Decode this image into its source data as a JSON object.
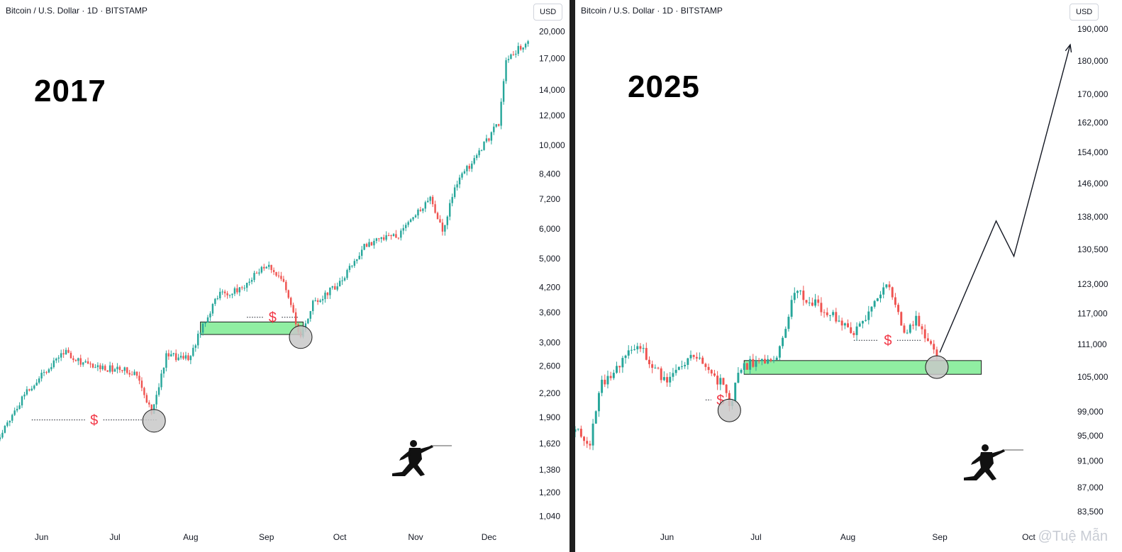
{
  "panels": [
    {
      "symbol": "Bitcoin / U.S. Dollar · 1D · BITSTAMP",
      "currency": "USD",
      "year": "2017",
      "liquidity_marker": "$",
      "price_ticks": [
        "20,000",
        "17,000",
        "14,000",
        "12,000",
        "10,000",
        "8,400",
        "7,200",
        "6,000",
        "5,000",
        "4,200",
        "3,600",
        "3,000",
        "2,600",
        "2,200",
        "1,900",
        "1,620",
        "1,380",
        "1,200",
        "1,040"
      ],
      "time_ticks": [
        "Jun",
        "Jul",
        "Aug",
        "Sep",
        "Oct",
        "Nov",
        "Dec"
      ]
    },
    {
      "symbol": "Bitcoin / U.S. Dollar · 1D · BITSTAMP",
      "currency": "USD",
      "year": "2025",
      "liquidity_marker": "$",
      "price_ticks": [
        "190,000",
        "180,000",
        "170,000",
        "162,000",
        "154,000",
        "146,000",
        "138,000",
        "130,500",
        "123,000",
        "117,000",
        "111,000",
        "105,000",
        "99,000",
        "95,000",
        "91,000",
        "87,000",
        "83,500"
      ],
      "time_ticks": [
        "Jun",
        "Jul",
        "Aug",
        "Sep",
        "Oct"
      ]
    }
  ],
  "watermark": "@Tuệ Mẫn",
  "colors": {
    "up": "#26a69a",
    "down": "#ef5350",
    "zone": "#90eea2",
    "circle": "#c8c8c8",
    "text": "#131722",
    "dollar": "#f23645"
  },
  "chart_data": [
    {
      "type": "candlestick",
      "title": "2017",
      "y_scale": "log",
      "ylim": [
        980,
        21500
      ],
      "x_range": [
        "2017-05-15",
        "2017-12-18"
      ],
      "close_path": [
        [
          "2017-05-15",
          1700
        ],
        [
          "2017-05-25",
          2200
        ],
        [
          "2017-06-10",
          2850
        ],
        [
          "2017-06-20",
          2600
        ],
        [
          "2017-07-01",
          2550
        ],
        [
          "2017-07-10",
          2500
        ],
        [
          "2017-07-16",
          1950
        ],
        [
          "2017-07-22",
          2750
        ],
        [
          "2017-08-01",
          2750
        ],
        [
          "2017-08-05",
          3250
        ],
        [
          "2017-08-12",
          4000
        ],
        [
          "2017-08-20",
          4100
        ],
        [
          "2017-09-01",
          4800
        ],
        [
          "2017-09-08",
          4300
        ],
        [
          "2017-09-15",
          3100
        ],
        [
          "2017-09-20",
          3800
        ],
        [
          "2017-10-01",
          4300
        ],
        [
          "2017-10-12",
          5500
        ],
        [
          "2017-10-25",
          5800
        ],
        [
          "2017-11-07",
          7300
        ],
        [
          "2017-11-12",
          5900
        ],
        [
          "2017-11-17",
          7800
        ],
        [
          "2017-11-28",
          9800
        ],
        [
          "2017-12-05",
          11500
        ],
        [
          "2017-12-08",
          16500
        ],
        [
          "2017-12-17",
          19200
        ]
      ],
      "support_zone": {
        "from": "2017-08-05",
        "to": "2017-09-16",
        "low": 3150,
        "high": 3400
      },
      "liquidity_levels": [
        {
          "from": "2017-05-28",
          "to": "2017-07-18",
          "price": 1870
        },
        {
          "from": "2017-08-24",
          "to": "2017-09-14",
          "price": 3500
        }
      ],
      "circles": [
        {
          "date": "2017-07-17",
          "price": 1860
        },
        {
          "date": "2017-09-15",
          "price": 3100
        }
      ]
    },
    {
      "type": "candlestick",
      "title": "2025",
      "y_scale": "log",
      "ylim": [
        81500,
        193000
      ],
      "x_range": [
        "2025-05-01",
        "2025-10-15"
      ],
      "close_path": [
        [
          "2025-05-01",
          96500
        ],
        [
          "2025-05-06",
          94000
        ],
        [
          "2025-05-10",
          104000
        ],
        [
          "2025-05-22",
          111000
        ],
        [
          "2025-06-01",
          104000
        ],
        [
          "2025-06-10",
          109000
        ],
        [
          "2025-06-20",
          103500
        ],
        [
          "2025-06-22",
          100000
        ],
        [
          "2025-06-26",
          107000
        ],
        [
          "2025-07-08",
          108500
        ],
        [
          "2025-07-14",
          121500
        ],
        [
          "2025-07-25",
          117500
        ],
        [
          "2025-08-03",
          113500
        ],
        [
          "2025-08-10",
          118500
        ],
        [
          "2025-08-14",
          123500
        ],
        [
          "2025-08-20",
          113500
        ],
        [
          "2025-08-24",
          116000
        ],
        [
          "2025-08-31",
          108300
        ]
      ],
      "support_zone": {
        "from": "2025-06-27",
        "to": "2025-09-15",
        "low": 105500,
        "high": 108000
      },
      "liquidity_levels": [
        {
          "from": "2025-06-14",
          "to": "2025-06-24",
          "price": 101000
        },
        {
          "from": "2025-08-03",
          "to": "2025-08-26",
          "price": 111800
        }
      ],
      "circles": [
        {
          "date": "2025-06-22",
          "price": 99200
        },
        {
          "date": "2025-08-31",
          "price": 106800
        }
      ],
      "projection": [
        [
          "2025-09-01",
          109500
        ],
        [
          "2025-09-20",
          137000
        ],
        [
          "2025-09-26",
          129000
        ],
        [
          "2025-10-15",
          185000
        ]
      ]
    }
  ]
}
